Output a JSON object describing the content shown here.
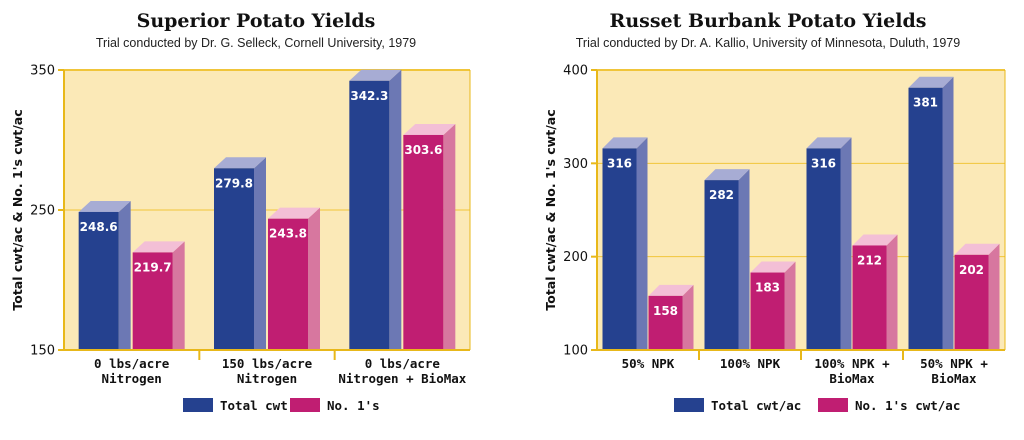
{
  "chart_data": [
    {
      "type": "bar",
      "title": "Superior Potato Yields",
      "subtitle": "Trial conducted by Dr. G. Selleck, Cornell University, 1979",
      "ylabel": "Total cwt/ac & No. 1's cwt/ac",
      "xlabel": "",
      "ylim": [
        150,
        350
      ],
      "yticks": [
        150,
        250,
        350
      ],
      "categories": [
        [
          "0 lbs/acre",
          "Nitrogen"
        ],
        [
          "150 lbs/acre",
          "Nitrogen"
        ],
        [
          "0 lbs/acre",
          "Nitrogen + BioMax"
        ]
      ],
      "series": [
        {
          "name": "Total cwt",
          "values": [
            248.6,
            279.8,
            342.3
          ],
          "labels": [
            "248.6",
            "279.8",
            "342.3"
          ]
        },
        {
          "name": "No. 1's",
          "values": [
            219.7,
            243.8,
            303.6
          ],
          "labels": [
            "219.7",
            "243.8",
            "303.6"
          ]
        }
      ],
      "legend": "bottom"
    },
    {
      "type": "bar",
      "title": "Russet Burbank Potato Yields",
      "subtitle": "Trial conducted by Dr. A. Kallio, University of Minnesota, Duluth, 1979",
      "ylabel": "Total cwt/ac & No. 1's cwt/ac",
      "xlabel": "",
      "ylim": [
        100,
        400
      ],
      "yticks": [
        100,
        200,
        300,
        400
      ],
      "categories": [
        [
          "50% NPK"
        ],
        [
          "100% NPK"
        ],
        [
          "100% NPK +",
          "BioMax"
        ],
        [
          "50% NPK +",
          "BioMax"
        ]
      ],
      "series": [
        {
          "name": "Total cwt/ac",
          "values": [
            316,
            282,
            316,
            381
          ],
          "labels": [
            "316",
            "282",
            "316",
            "381"
          ]
        },
        {
          "name": "No. 1's cwt/ac",
          "values": [
            158,
            183,
            212,
            202
          ],
          "labels": [
            "158",
            "183",
            "212",
            "202"
          ]
        }
      ],
      "legend": "bottom"
    }
  ],
  "colors": {
    "plot_bg": "#fbe9b7",
    "axis": "#e8b81a",
    "grid": "#f0c53a",
    "series": [
      {
        "front": "#25418f",
        "top": "#a7acd4",
        "side": "#6c78b4"
      },
      {
        "front": "#c01e72",
        "top": "#f3bfd6",
        "side": "#d7779f"
      }
    ]
  }
}
